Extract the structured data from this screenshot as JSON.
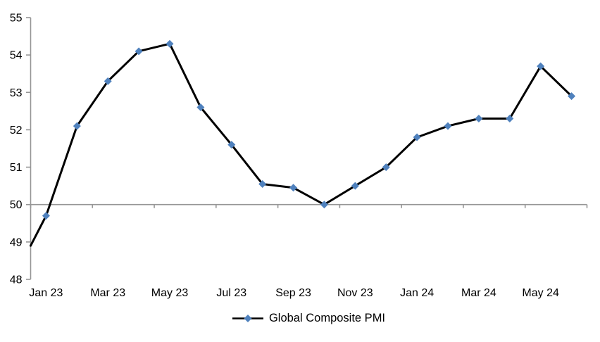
{
  "chart_data": {
    "type": "line",
    "title": "",
    "legend_position": "bottom",
    "categories": [
      "Jan 23",
      "Feb 23",
      "Mar 23",
      "Apr 23",
      "May 23",
      "Jun 23",
      "Jul 23",
      "Aug 23",
      "Sep 23",
      "Oct 23",
      "Nov 23",
      "Dec 23",
      "Jan 24",
      "Feb 24",
      "Mar 24",
      "Apr 24",
      "May 24",
      "Jun 24"
    ],
    "series": [
      {
        "name": "Global Composite PMI",
        "values": [
          49.7,
          52.1,
          53.3,
          54.1,
          54.3,
          52.6,
          51.6,
          50.55,
          50.45,
          50.0,
          50.5,
          51.0,
          51.8,
          52.1,
          52.3,
          52.3,
          53.7,
          52.9
        ]
      }
    ],
    "line_enters_left_edge_at_value": 48.9,
    "ylim": [
      48,
      55
    ],
    "y_ticks": [
      48,
      49,
      50,
      51,
      52,
      53,
      54,
      55
    ],
    "x_tick_labels": [
      "Jan 23",
      "Mar 23",
      "May 23",
      "Jul 23",
      "Sep 23",
      "Nov 23",
      "Jan 24",
      "Mar 24",
      "May 24"
    ],
    "x_label_interval": 2,
    "grid": "none",
    "category_axis_at_value": 50,
    "colors": {
      "line": "#000000",
      "marker": "#4F81BD",
      "axis": "#969696",
      "text": "#000000"
    }
  }
}
